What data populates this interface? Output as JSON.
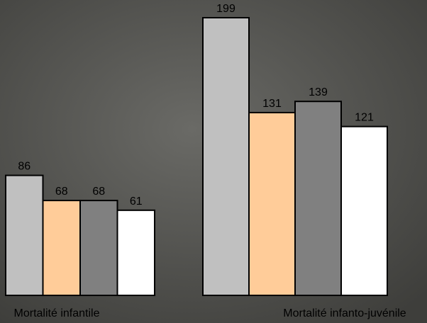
{
  "chart_data": {
    "type": "bar",
    "categories": [
      "Mortalité infantile",
      "Mortalité infanto-juvénile"
    ],
    "series": [
      {
        "color": "#c0c0c0",
        "values": [
          86,
          199
        ]
      },
      {
        "color": "#ffcc99",
        "values": [
          68,
          131
        ]
      },
      {
        "color": "#808080",
        "values": [
          68,
          139
        ]
      },
      {
        "color": "#ffffff",
        "values": [
          61,
          121
        ]
      }
    ]
  }
}
